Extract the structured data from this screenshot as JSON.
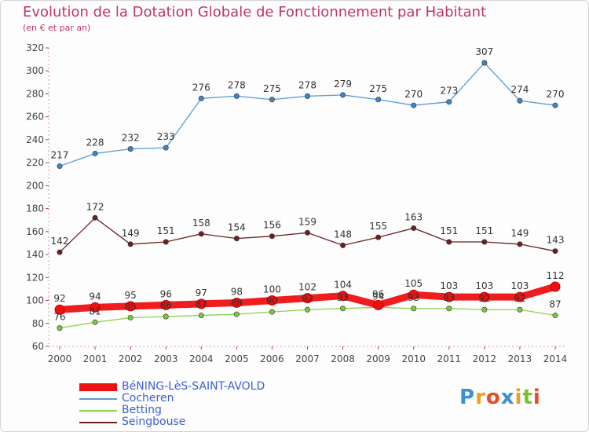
{
  "header": {
    "title": "Evolution de la Dotation Globale de Fonctionnement par Habitant",
    "subtitle": "(en € et par an)"
  },
  "logo": {
    "text": "Proxiti",
    "colors": [
      "#3a8fd6",
      "#e8a21f",
      "#e84a2a",
      "#3a8fd6",
      "#e8a21f",
      "#7cbf2e",
      "#e84a2a"
    ]
  },
  "chart_data": {
    "type": "line",
    "x": [
      "2000",
      "2001",
      "2002",
      "2003",
      "2004",
      "2005",
      "2006",
      "2007",
      "2008",
      "2009",
      "2010",
      "2011",
      "2012",
      "2013",
      "2014"
    ],
    "ylim": [
      60,
      320
    ],
    "yticks": [
      60,
      80,
      100,
      120,
      140,
      160,
      180,
      200,
      220,
      240,
      260,
      280,
      300,
      320
    ],
    "grid": false,
    "legend_position": "bottom-left",
    "series": [
      {
        "name": "Betting",
        "color": "#8fd14f",
        "point_color": "#7cc93a",
        "emphasis": false,
        "show_labels": true,
        "values": [
          76,
          81,
          85,
          86,
          87,
          88,
          90,
          92,
          93,
          94,
          93,
          93,
          92,
          92,
          87
        ]
      },
      {
        "name": "Seingbouse",
        "color": "#6b1f1f",
        "point_color": "#6b1f1f",
        "emphasis": false,
        "show_labels": true,
        "values": [
          142,
          172,
          149,
          151,
          158,
          154,
          156,
          159,
          148,
          155,
          163,
          151,
          151,
          149,
          143
        ]
      },
      {
        "name": "Cocheren",
        "color": "#5b9bd5",
        "point_color": "#3d85c6",
        "emphasis": false,
        "show_labels": true,
        "values": [
          217,
          228,
          232,
          233,
          276,
          278,
          275,
          278,
          279,
          275,
          270,
          273,
          307,
          274,
          270
        ]
      },
      {
        "name": "BéNING-LèS-SAINT-AVOLD",
        "color": "#ee1111",
        "point_color": "#ee1111",
        "emphasis": true,
        "show_labels": true,
        "values": [
          92,
          94,
          95,
          96,
          97,
          98,
          100,
          102,
          104,
          96,
          105,
          103,
          103,
          103,
          112
        ]
      }
    ],
    "legend_order": [
      "BéNING-LèS-SAINT-AVOLD",
      "Cocheren",
      "Betting",
      "Seingbouse"
    ]
  }
}
